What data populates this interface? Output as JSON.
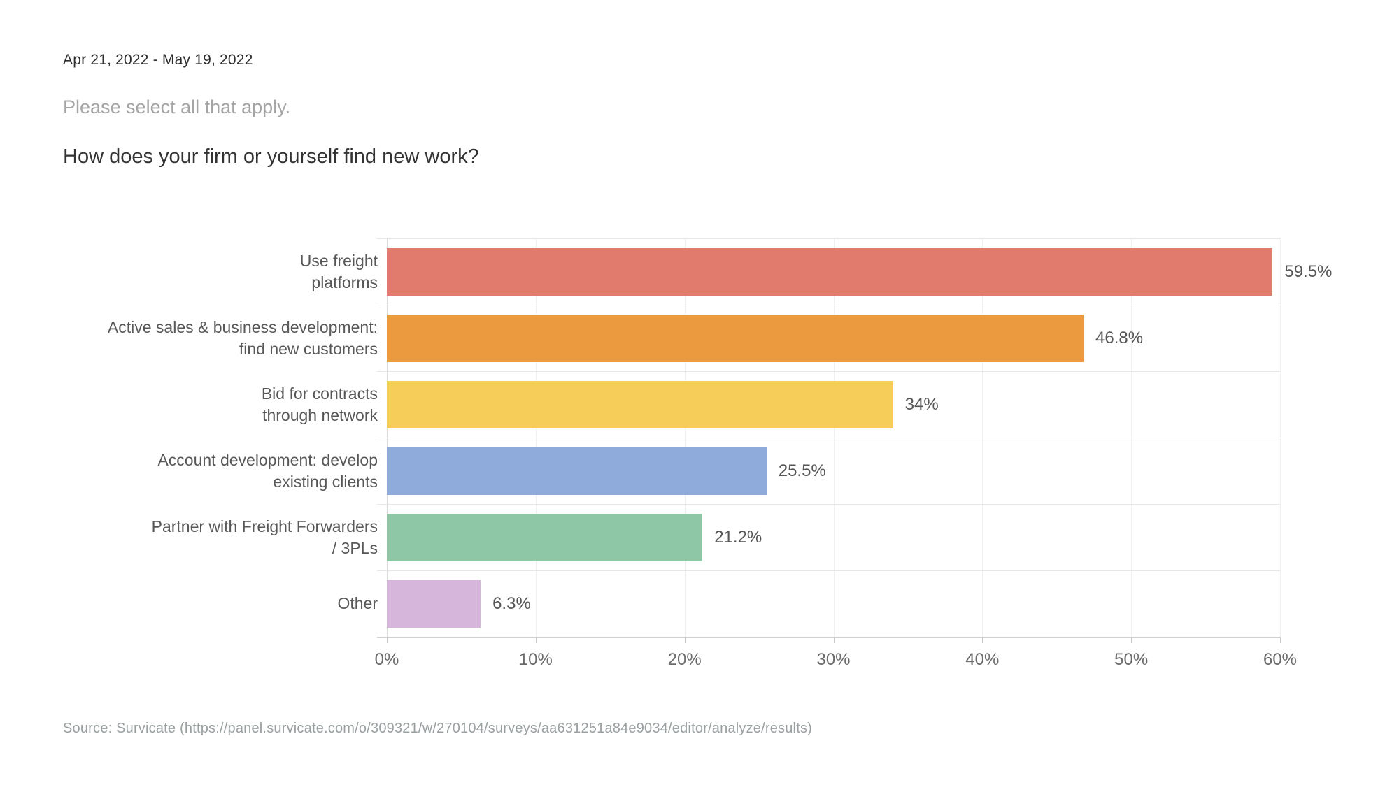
{
  "header": {
    "date_range": "Apr 21, 2022 - May 19, 2022",
    "instruction": "Please select all that apply.",
    "question": "How does your firm or yourself find new work?"
  },
  "chart_data": {
    "type": "bar",
    "orientation": "horizontal",
    "title": "How does your firm or yourself find new work?",
    "categories": [
      "Use freight platforms",
      "Active sales & business development: find new customers",
      "Bid for contracts through network",
      "Account development: develop existing clients",
      "Partner with Freight Forwarders / 3PLs",
      "Other"
    ],
    "category_lines": [
      [
        "Use freight",
        "platforms"
      ],
      [
        "Active sales & business development:",
        "find new customers"
      ],
      [
        "Bid for contracts",
        "through network"
      ],
      [
        "Account development: develop",
        "existing clients"
      ],
      [
        "Partner with Freight Forwarders",
        "/ 3PLs"
      ],
      [
        "Other"
      ]
    ],
    "values": [
      59.5,
      46.8,
      34,
      25.5,
      21.2,
      6.3
    ],
    "value_labels": [
      "59.5%",
      "46.8%",
      "34%",
      "25.5%",
      "21.2%",
      "6.3%"
    ],
    "bar_colors": [
      "#e07b6e",
      "#eb9a40",
      "#f5cd58",
      "#8fabdb",
      "#8dc7a5",
      "#d7b6db"
    ],
    "xlim": [
      0,
      60
    ],
    "x_ticks": [
      "0%",
      "10%",
      "20%",
      "30%",
      "40%",
      "50%",
      "60%"
    ],
    "x_tick_values": [
      0,
      10,
      20,
      30,
      40,
      50,
      60
    ],
    "grid": true,
    "legend": false
  },
  "footer": {
    "source": "Source: Survicate (https://panel.survicate.com/o/309321/w/270104/surveys/aa631251a84e9034/editor/analyze/results)"
  }
}
